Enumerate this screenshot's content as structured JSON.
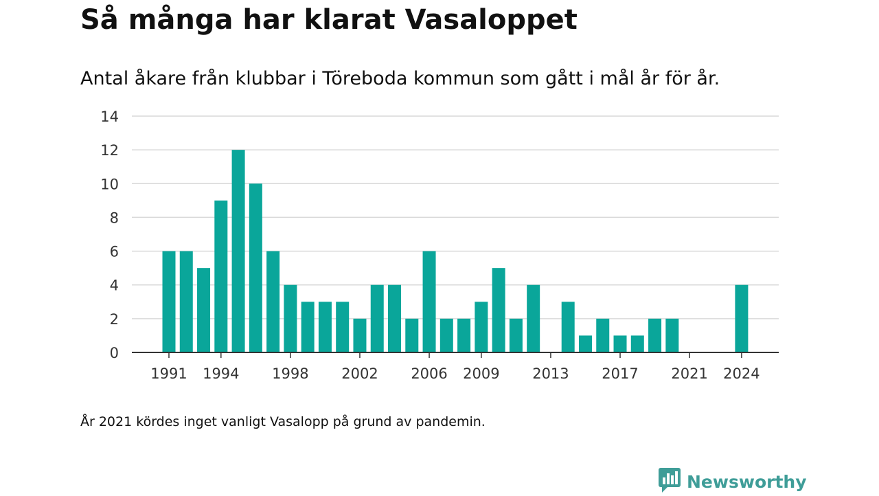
{
  "header": {
    "title": "Så många har klarat Vasaloppet",
    "subtitle": "Antal åkare från klubbar i Töreboda kommun som gått i mål år för år."
  },
  "footer": {
    "note": "År 2021 kördes inget vanligt Vasalopp på grund av pandemin.",
    "brand": "Newsworthy",
    "brand_icon": "newsworthy-logo-icon"
  },
  "colors": {
    "bar": "#0aa69a",
    "grid": "#d9d9d9",
    "axis": "#333333",
    "brand": "#3f9d98"
  },
  "chart_data": {
    "type": "bar",
    "title": "Så många har klarat Vasaloppet",
    "subtitle": "Antal åkare från klubbar i Töreboda kommun som gått i mål år för år.",
    "categories": [
      1991,
      1992,
      1993,
      1994,
      1995,
      1996,
      1997,
      1998,
      1999,
      2000,
      2001,
      2002,
      2003,
      2004,
      2005,
      2006,
      2007,
      2008,
      2009,
      2010,
      2011,
      2012,
      2013,
      2014,
      2015,
      2016,
      2017,
      2018,
      2019,
      2020,
      2021,
      2022,
      2023,
      2024
    ],
    "values": [
      6,
      6,
      5,
      9,
      12,
      10,
      6,
      4,
      3,
      3,
      3,
      2,
      4,
      4,
      2,
      6,
      2,
      2,
      3,
      5,
      2,
      4,
      0,
      3,
      1,
      2,
      1,
      1,
      2,
      2,
      0,
      0,
      0,
      4
    ],
    "x_tick_labels": [
      "1991",
      "1994",
      "1998",
      "2002",
      "2006",
      "2009",
      "2013",
      "2017",
      "2021",
      "2024"
    ],
    "y_ticks": [
      0,
      2,
      4,
      6,
      8,
      10,
      12,
      14
    ],
    "ylim": [
      0,
      14
    ],
    "xlabel": "",
    "ylabel": "",
    "grid": true
  }
}
